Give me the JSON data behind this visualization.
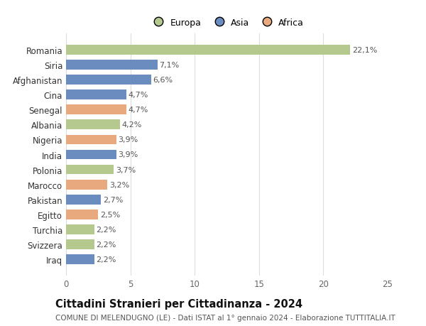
{
  "countries": [
    "Romania",
    "Siria",
    "Afghanistan",
    "Cina",
    "Senegal",
    "Albania",
    "Nigeria",
    "India",
    "Polonia",
    "Marocco",
    "Pakistan",
    "Egitto",
    "Turchia",
    "Svizzera",
    "Iraq"
  ],
  "values": [
    22.1,
    7.1,
    6.6,
    4.7,
    4.7,
    4.2,
    3.9,
    3.9,
    3.7,
    3.2,
    2.7,
    2.5,
    2.2,
    2.2,
    2.2
  ],
  "labels": [
    "22,1%",
    "7,1%",
    "6,6%",
    "4,7%",
    "4,7%",
    "4,2%",
    "3,9%",
    "3,9%",
    "3,7%",
    "3,2%",
    "2,7%",
    "2,5%",
    "2,2%",
    "2,2%",
    "2,2%"
  ],
  "colors": [
    "#b5c98e",
    "#6b8cbf",
    "#6b8cbf",
    "#6b8cbf",
    "#e8a97e",
    "#b5c98e",
    "#e8a97e",
    "#6b8cbf",
    "#b5c98e",
    "#e8a97e",
    "#6b8cbf",
    "#e8a97e",
    "#b5c98e",
    "#b5c98e",
    "#6b8cbf"
  ],
  "continent_labels": [
    "Europa",
    "Asia",
    "Africa"
  ],
  "continent_colors": [
    "#b5c98e",
    "#6b8cbf",
    "#e8a97e"
  ],
  "xlim": [
    0,
    25
  ],
  "xticks": [
    0,
    5,
    10,
    15,
    20,
    25
  ],
  "title": "Cittadini Stranieri per Cittadinanza - 2024",
  "subtitle": "COMUNE DI MELENDUGNO (LE) - Dati ISTAT al 1° gennaio 2024 - Elaborazione TUTTITALIA.IT",
  "bg_color": "#ffffff",
  "grid_color": "#dddddd",
  "bar_height": 0.65,
  "label_fontsize": 8.0,
  "title_fontsize": 10.5,
  "subtitle_fontsize": 7.5,
  "tick_fontsize": 8.5,
  "legend_fontsize": 9
}
